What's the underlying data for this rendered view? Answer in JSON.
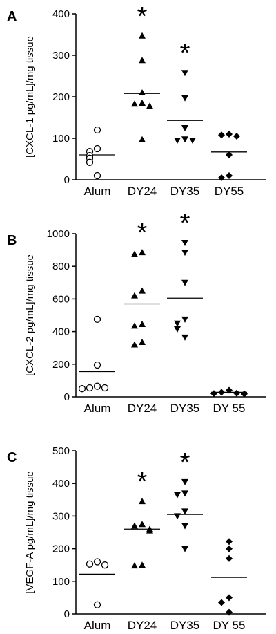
{
  "chart_data": [
    {
      "type": "scatter",
      "panel": "A",
      "ylabel": "[CXCL-1 pg/mL]/mg tissue",
      "ylim": [
        0,
        400
      ],
      "yticks": [
        "0",
        "100",
        "200",
        "300",
        "400"
      ],
      "categories": [
        "Alum",
        "DY24",
        "DY35",
        "DY55"
      ],
      "significance": [
        "",
        "*",
        "*",
        ""
      ],
      "markers": [
        "circle-open",
        "triangle-up",
        "triangle-down",
        "diamond"
      ],
      "points": [
        [
          120,
          75,
          68,
          58,
          52,
          42,
          10
        ],
        [
          347,
          288,
          210,
          185,
          183,
          178,
          97
        ],
        [
          258,
          197,
          125,
          98,
          95,
          95
        ],
        [
          110,
          108,
          105,
          60,
          10,
          5
        ]
      ],
      "medians": [
        60,
        208,
        143,
        67
      ]
    },
    {
      "type": "scatter",
      "panel": "B",
      "ylabel": "[CXCL-2 pg/mL]/mg tissue",
      "ylim": [
        0,
        1000
      ],
      "yticks": [
        "0",
        "200",
        "400",
        "600",
        "800",
        "1000"
      ],
      "categories": [
        "Alum",
        "DY24",
        "DY35",
        "DY 55"
      ],
      "significance": [
        "",
        "*",
        "*",
        ""
      ],
      "markers": [
        "circle-open",
        "triangle-up",
        "triangle-down",
        "diamond"
      ],
      "points": [
        [
          475,
          195,
          65,
          55,
          55,
          50
        ],
        [
          885,
          875,
          650,
          620,
          445,
          435,
          335,
          320
        ],
        [
          945,
          885,
          700,
          475,
          450,
          415,
          365
        ],
        [
          40,
          28,
          22,
          20,
          18
        ]
      ],
      "medians": [
        155,
        570,
        605,
        28
      ]
    },
    {
      "type": "scatter",
      "panel": "C",
      "ylabel": "[VEGF-A pg/mL]/mg tissue",
      "ylim": [
        0,
        500
      ],
      "yticks": [
        "0",
        "100",
        "200",
        "300",
        "400",
        "500"
      ],
      "categories": [
        "Alum",
        "DY24",
        "DY35",
        "DY 55"
      ],
      "significance": [
        "",
        "*",
        "*",
        ""
      ],
      "markers": [
        "circle-open",
        "triangle-up",
        "triangle-down",
        "diamond"
      ],
      "points": [
        [
          160,
          153,
          150,
          28
        ],
        [
          345,
          275,
          270,
          260,
          255,
          150,
          148
        ],
        [
          405,
          370,
          365,
          315,
          300,
          270,
          200
        ],
        [
          222,
          200,
          170,
          50,
          35,
          5
        ]
      ],
      "medians": [
        122,
        260,
        305,
        112
      ]
    }
  ]
}
